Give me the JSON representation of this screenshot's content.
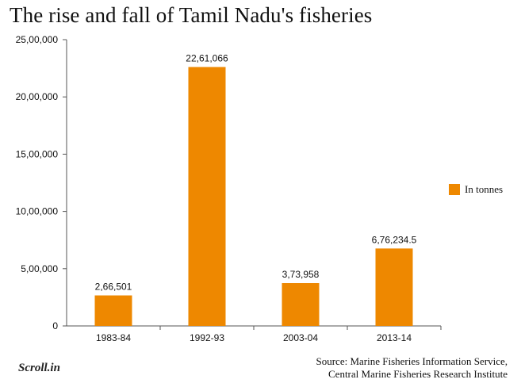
{
  "title": "The rise and fall of Tamil Nadu's fisheries",
  "source_line1": "Source: Marine Fisheries Information Service,",
  "source_line2": "Central Marine Fisheries Research Institute",
  "logo_text": "Scroll.in",
  "colors": {
    "bar": "#EE8800",
    "axis": "#555555",
    "text": "#111111"
  },
  "chart_data": {
    "type": "bar",
    "title": "The rise and fall of Tamil Nadu's fisheries",
    "categories": [
      "1983-84",
      "1992-93",
      "2003-04",
      "2013-14"
    ],
    "series": [
      {
        "name": "In tonnes",
        "values": [
          266501,
          2261066,
          373958,
          676234.5
        ],
        "labels": [
          "2,66,501",
          "22,61,066",
          "3,73,958",
          "6,76,234.5"
        ]
      }
    ],
    "ylim": [
      0,
      2500000
    ],
    "yticks": [
      0,
      500000,
      1000000,
      1500000,
      2000000,
      2500000
    ],
    "ytick_labels": [
      "0",
      "5,00,000",
      "10,00,000",
      "15,00,000",
      "20,00,000",
      "25,00,000"
    ],
    "xlabel": "",
    "ylabel": "",
    "grid": false,
    "legend": "right"
  }
}
